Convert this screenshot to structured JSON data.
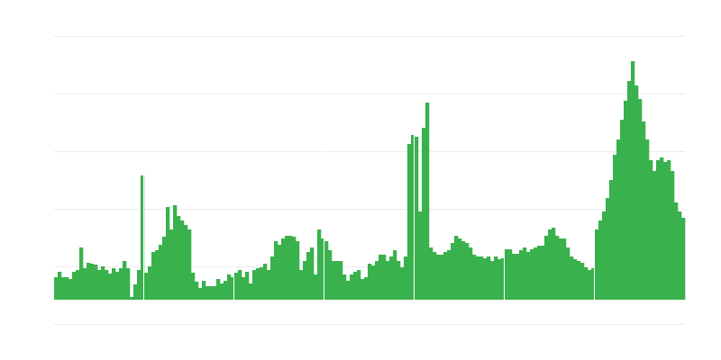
{
  "chart_data": {
    "type": "bar",
    "title": "",
    "xlabel": "",
    "ylabel": "",
    "bar_color": "#39b14c",
    "grid_color": "#ebebeb",
    "grid": true,
    "ylim": [
      -27,
      293
    ],
    "y_grid_step": 64,
    "segments": 7,
    "values": [
      25,
      31,
      25,
      25,
      23,
      31,
      33,
      58,
      35,
      41,
      40,
      39,
      33,
      37,
      33,
      29,
      35,
      31,
      35,
      43,
      35,
      3,
      17,
      33,
      138,
      30,
      37,
      53,
      55,
      61,
      70,
      103,
      78,
      105,
      93,
      88,
      83,
      78,
      30,
      20,
      13,
      21,
      15,
      15,
      15,
      23,
      18,
      21,
      28,
      25,
      30,
      33,
      25,
      31,
      18,
      33,
      35,
      36,
      40,
      33,
      48,
      65,
      61,
      68,
      71,
      71,
      70,
      65,
      33,
      43,
      53,
      58,
      28,
      78,
      68,
      65,
      55,
      43,
      43,
      43,
      28,
      21,
      28,
      31,
      33,
      23,
      25,
      40,
      38,
      43,
      50,
      50,
      43,
      48,
      55,
      43,
      36,
      48,
      173,
      183,
      181,
      98,
      191,
      219,
      58,
      53,
      50,
      50,
      53,
      55,
      63,
      71,
      68,
      65,
      63,
      58,
      50,
      48,
      48,
      46,
      48,
      43,
      48,
      45,
      46,
      56,
      56,
      51,
      51,
      55,
      58,
      53,
      56,
      58,
      60,
      60,
      71,
      78,
      80,
      71,
      68,
      68,
      58,
      48,
      45,
      43,
      41,
      36,
      33,
      35,
      78,
      88,
      98,
      113,
      133,
      161,
      178,
      200,
      221,
      243,
      265,
      238,
      223,
      198,
      178,
      155,
      143,
      155,
      158,
      153,
      155,
      143,
      108,
      98,
      91
    ]
  }
}
